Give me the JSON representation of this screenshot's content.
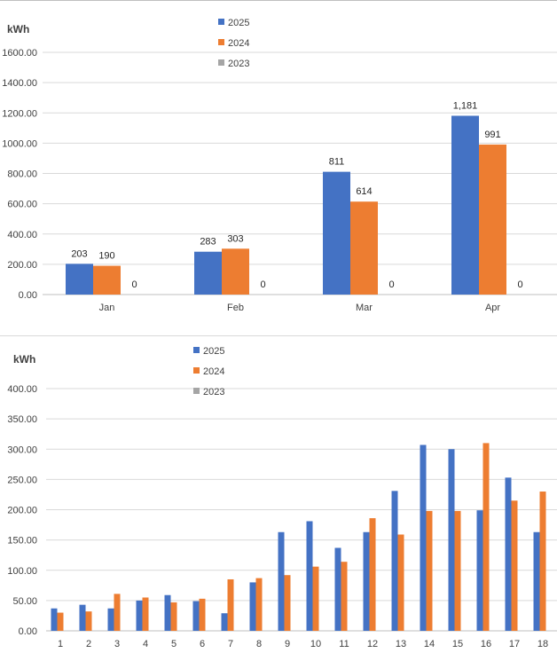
{
  "chart_data": [
    {
      "type": "bar",
      "unit_label": "kWh",
      "categories": [
        "Jan",
        "Feb",
        "Mar",
        "Apr"
      ],
      "series": [
        {
          "name": "2025",
          "color": "#4472c4",
          "values": [
            203,
            283,
            811,
            1181
          ],
          "labels": [
            "203",
            "283",
            "811",
            "1,181"
          ]
        },
        {
          "name": "2024",
          "color": "#ed7d31",
          "values": [
            190,
            303,
            614,
            991
          ],
          "labels": [
            "190",
            "303",
            "614",
            "991"
          ]
        },
        {
          "name": "2023",
          "color": "#a5a5a5",
          "values": [
            0,
            0,
            0,
            0
          ],
          "labels": [
            "0",
            "0",
            "0",
            "0"
          ]
        }
      ],
      "ylim": [
        0,
        1600
      ],
      "yticks": [
        "0.00",
        "200.00",
        "400.00",
        "600.00",
        "800.00",
        "1000.00",
        "1200.00",
        "1400.00",
        "1600.00"
      ],
      "grid": true,
      "legend": "top"
    },
    {
      "type": "bar",
      "unit_label": "kWh",
      "categories": [
        "1",
        "2",
        "3",
        "4",
        "5",
        "6",
        "7",
        "8",
        "9",
        "10",
        "11",
        "12",
        "13",
        "14",
        "15",
        "16",
        "17",
        "18"
      ],
      "series": [
        {
          "name": "2025",
          "color": "#4472c4",
          "values": [
            37,
            43,
            37,
            50,
            59,
            49,
            29,
            80,
            163,
            181,
            137,
            163,
            231,
            307,
            300,
            199,
            253,
            163
          ]
        },
        {
          "name": "2024",
          "color": "#ed7d31",
          "values": [
            30,
            32,
            61,
            55,
            47,
            53,
            85,
            87,
            92,
            106,
            114,
            186,
            159,
            198,
            198,
            310,
            215,
            230
          ]
        },
        {
          "name": "2023",
          "color": "#a5a5a5",
          "values": [
            0,
            0,
            0,
            0,
            0,
            0,
            0,
            0,
            0,
            0,
            0,
            0,
            0,
            0,
            0,
            0,
            0,
            0
          ]
        }
      ],
      "ylim": [
        0,
        400
      ],
      "yticks": [
        "0.00",
        "50.00",
        "100.00",
        "150.00",
        "200.00",
        "250.00",
        "300.00",
        "350.00",
        "400.00"
      ],
      "grid": true,
      "legend": "top"
    }
  ]
}
